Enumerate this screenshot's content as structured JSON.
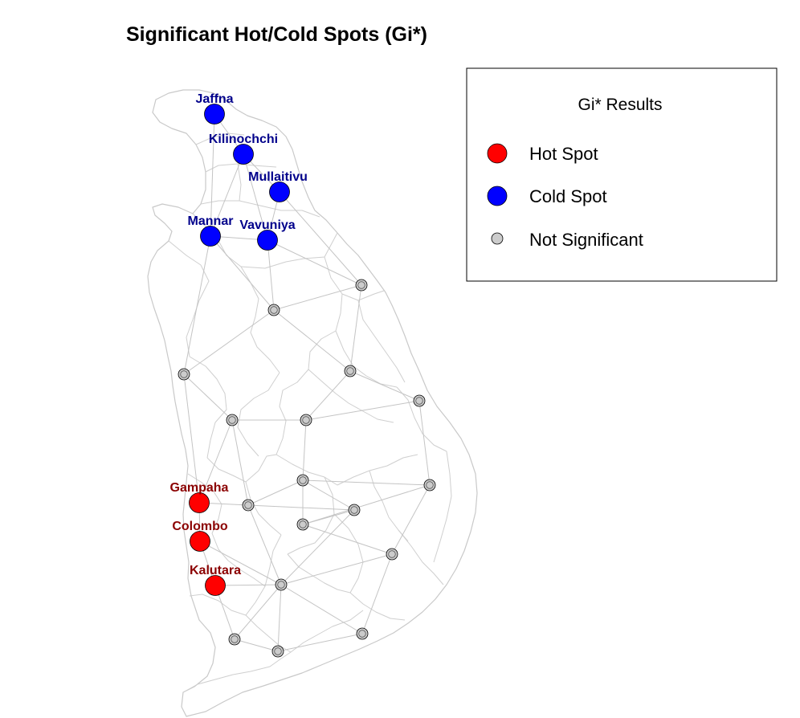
{
  "title": "Significant Hot/Cold Spots (Gi*)",
  "colors": {
    "hot": "#ff0000",
    "cold": "#0000ff",
    "not_significant": "#cccccc",
    "hot_label": "#8b0000",
    "cold_label": "#00008b",
    "boundary": "#cfcfcf",
    "edge": "#c4c4c4"
  },
  "legend": {
    "title": "Gi* Results",
    "items": [
      {
        "label": "Hot Spot",
        "category": "hot"
      },
      {
        "label": "Cold Spot",
        "category": "cold"
      },
      {
        "label": "Not Significant",
        "category": "not_significant"
      }
    ]
  },
  "districts": [
    {
      "id": "jaffna",
      "label": "Jaffna",
      "category": "cold"
    },
    {
      "id": "kilinochchi",
      "label": "Kilinochchi",
      "category": "cold"
    },
    {
      "id": "mullaitivu",
      "label": "Mullaitivu",
      "category": "cold"
    },
    {
      "id": "mannar",
      "label": "Mannar",
      "category": "cold"
    },
    {
      "id": "vavuniya",
      "label": "Vavuniya",
      "category": "cold"
    },
    {
      "id": "gampaha",
      "label": "Gampaha",
      "category": "hot"
    },
    {
      "id": "colombo",
      "label": "Colombo",
      "category": "hot"
    },
    {
      "id": "kalutara",
      "label": "Kalutara",
      "category": "hot"
    },
    {
      "id": "trincomalee",
      "label": "",
      "category": "not_significant"
    },
    {
      "id": "anuradhapura",
      "label": "",
      "category": "not_significant"
    },
    {
      "id": "puttalam",
      "label": "",
      "category": "not_significant"
    },
    {
      "id": "polonnaruwa",
      "label": "",
      "category": "not_significant"
    },
    {
      "id": "batticaloa",
      "label": "",
      "category": "not_significant"
    },
    {
      "id": "kurunegala",
      "label": "",
      "category": "not_significant"
    },
    {
      "id": "matale",
      "label": "",
      "category": "not_significant"
    },
    {
      "id": "kandy",
      "label": "",
      "category": "not_significant"
    },
    {
      "id": "kegalle",
      "label": "",
      "category": "not_significant"
    },
    {
      "id": "ampara",
      "label": "",
      "category": "not_significant"
    },
    {
      "id": "nuwara-eliya",
      "label": "",
      "category": "not_significant"
    },
    {
      "id": "badulla",
      "label": "",
      "category": "not_significant"
    },
    {
      "id": "ratnapura",
      "label": "",
      "category": "not_significant"
    },
    {
      "id": "monaragala",
      "label": "",
      "category": "not_significant"
    },
    {
      "id": "galle",
      "label": "",
      "category": "not_significant"
    },
    {
      "id": "matara",
      "label": "",
      "category": "not_significant"
    },
    {
      "id": "hambantota",
      "label": "",
      "category": "not_significant"
    }
  ],
  "neighbors": [
    [
      "jaffna",
      "kilinochchi"
    ],
    [
      "jaffna",
      "mannar"
    ],
    [
      "kilinochchi",
      "mullaitivu"
    ],
    [
      "kilinochchi",
      "mannar"
    ],
    [
      "kilinochchi",
      "vavuniya"
    ],
    [
      "mullaitivu",
      "vavuniya"
    ],
    [
      "mullaitivu",
      "trincomalee"
    ],
    [
      "mannar",
      "vavuniya"
    ],
    [
      "mannar",
      "anuradhapura"
    ],
    [
      "mannar",
      "puttalam"
    ],
    [
      "vavuniya",
      "anuradhapura"
    ],
    [
      "vavuniya",
      "trincomalee"
    ],
    [
      "trincomalee",
      "anuradhapura"
    ],
    [
      "trincomalee",
      "polonnaruwa"
    ],
    [
      "anuradhapura",
      "puttalam"
    ],
    [
      "anuradhapura",
      "polonnaruwa"
    ],
    [
      "puttalam",
      "kurunegala"
    ],
    [
      "puttalam",
      "gampaha"
    ],
    [
      "polonnaruwa",
      "batticaloa"
    ],
    [
      "polonnaruwa",
      "matale"
    ],
    [
      "batticaloa",
      "matale"
    ],
    [
      "batticaloa",
      "ampara"
    ],
    [
      "kurunegala",
      "matale"
    ],
    [
      "kurunegala",
      "gampaha"
    ],
    [
      "kurunegala",
      "kegalle"
    ],
    [
      "matale",
      "kandy"
    ],
    [
      "kandy",
      "kegalle"
    ],
    [
      "kandy",
      "nuwara-eliya"
    ],
    [
      "kandy",
      "badulla"
    ],
    [
      "kandy",
      "ampara"
    ],
    [
      "kegalle",
      "gampaha"
    ],
    [
      "kegalle",
      "ratnapura"
    ],
    [
      "kegalle",
      "nuwara-eliya"
    ],
    [
      "gampaha",
      "colombo"
    ],
    [
      "colombo",
      "kalutara"
    ],
    [
      "colombo",
      "ratnapura"
    ],
    [
      "kalutara",
      "ratnapura"
    ],
    [
      "kalutara",
      "galle"
    ],
    [
      "ratnapura",
      "nuwara-eliya"
    ],
    [
      "ratnapura",
      "galle"
    ],
    [
      "ratnapura",
      "matara"
    ],
    [
      "ratnapura",
      "hambantota"
    ],
    [
      "ratnapura",
      "monaragala"
    ],
    [
      "nuwara-eliya",
      "badulla"
    ],
    [
      "badulla",
      "ampara"
    ],
    [
      "badulla",
      "monaragala"
    ],
    [
      "ampara",
      "monaragala"
    ],
    [
      "monaragala",
      "hambantota"
    ],
    [
      "galle",
      "matara"
    ],
    [
      "matara",
      "hambantota"
    ]
  ]
}
